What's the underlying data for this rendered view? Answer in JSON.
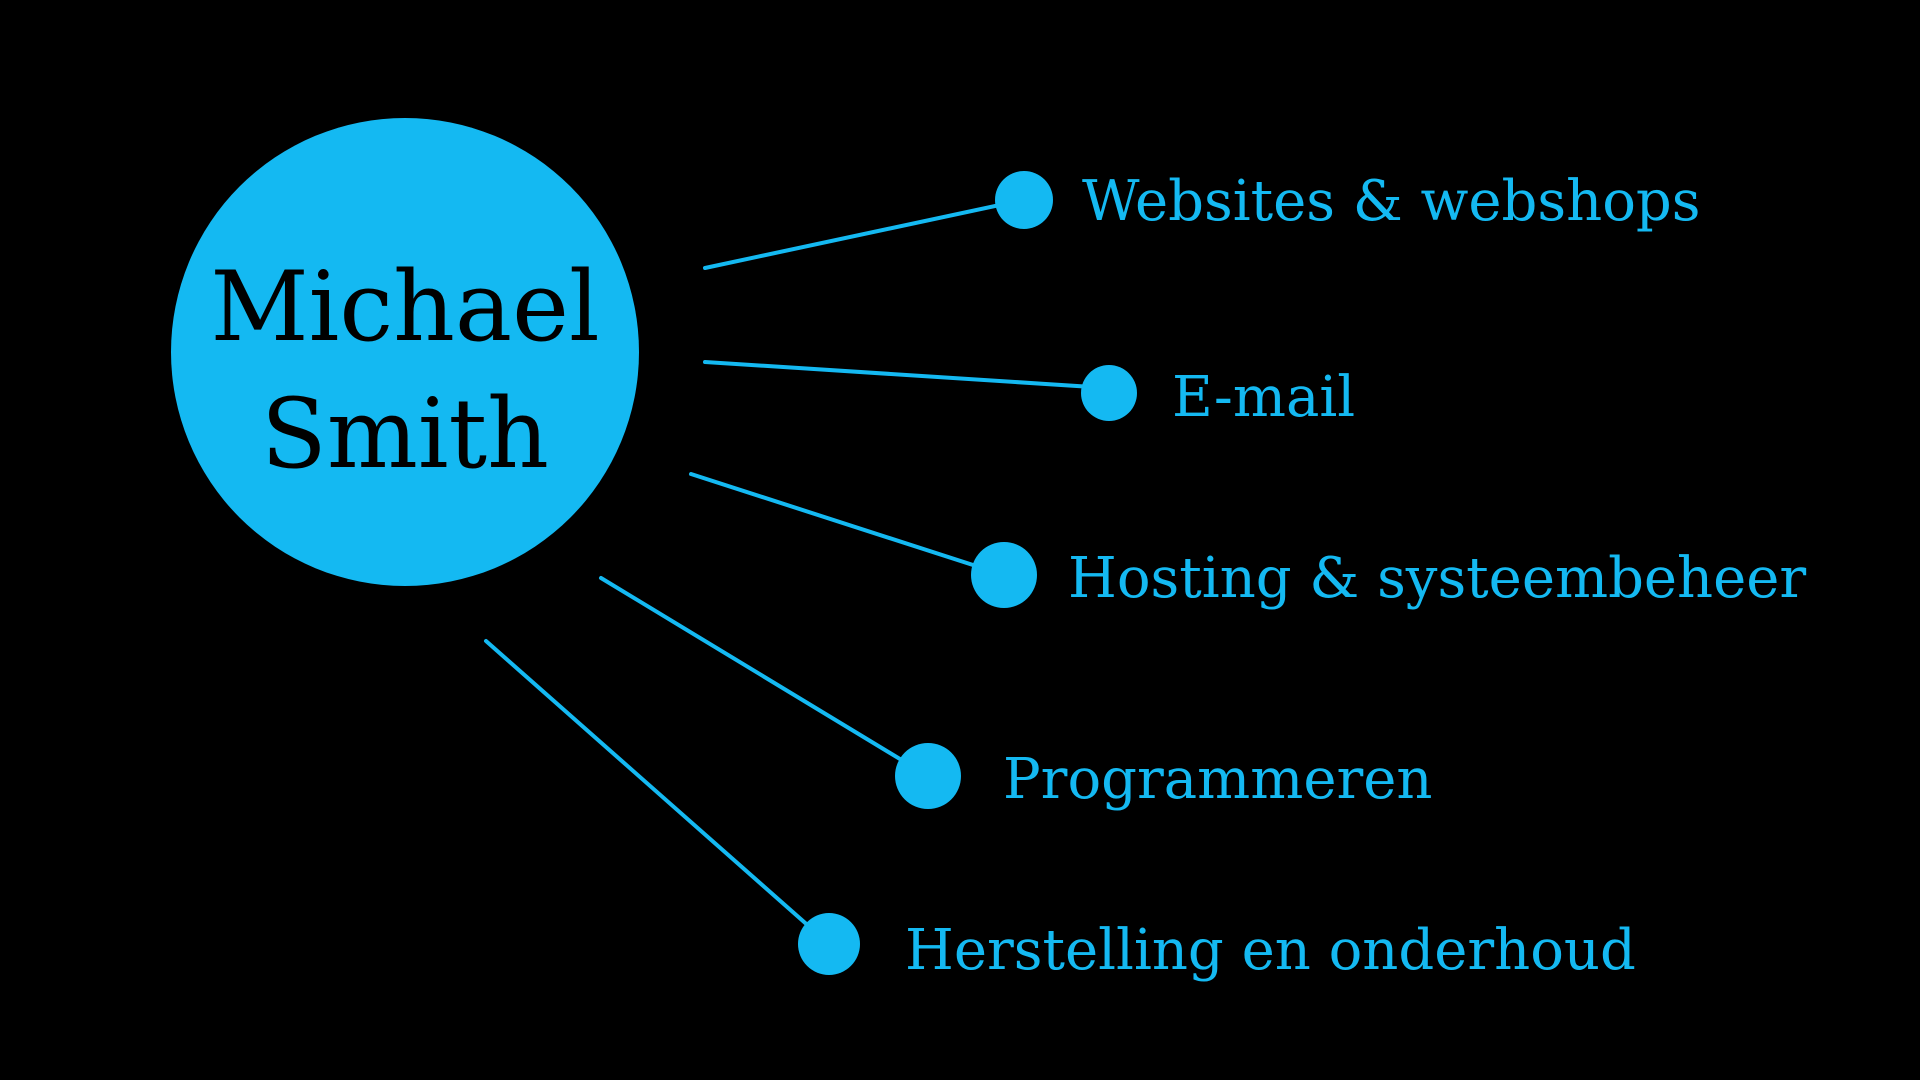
{
  "colors": {
    "background": "#000000",
    "accent": "#14b9f2",
    "hub_text": "#000000"
  },
  "hub": {
    "name_line1": "Michael",
    "name_line2": "Smith"
  },
  "services": [
    {
      "label": "Websites & webshops"
    },
    {
      "label": "E-mail"
    },
    {
      "label": "Hosting & systeembeheer"
    },
    {
      "label": "Programmeren"
    },
    {
      "label": "Herstelling en onderhoud"
    }
  ]
}
